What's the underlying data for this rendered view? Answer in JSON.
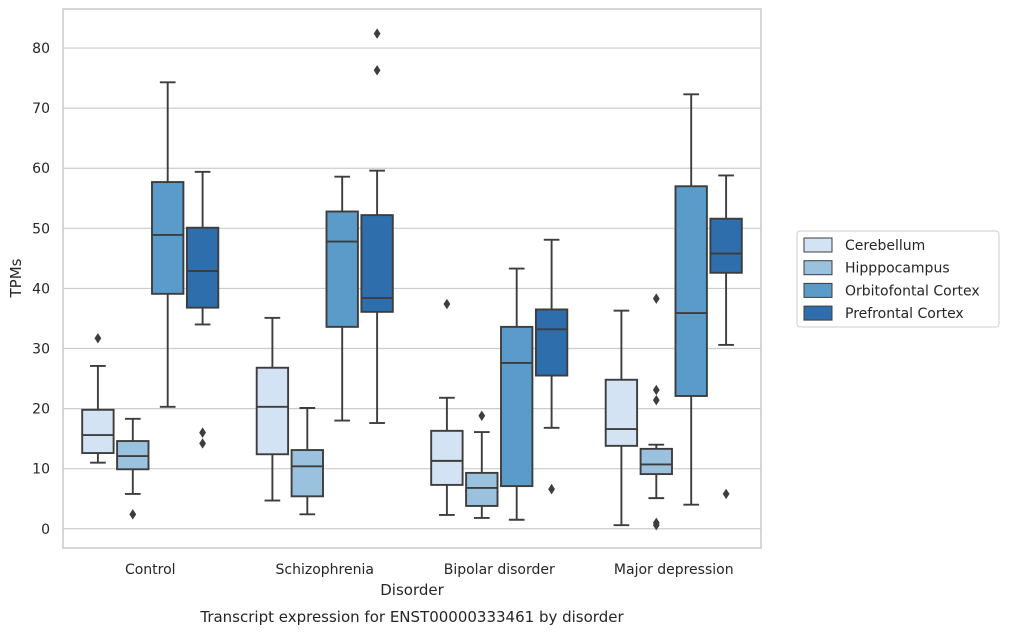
{
  "caption": "Transcript expression for ENST00000333461 by disorder",
  "chart_data": {
    "type": "box",
    "xlabel": "Disorder",
    "ylabel": "TPMs",
    "ylim": [
      -3.2,
      86.5
    ],
    "yticks": [
      0,
      10,
      20,
      30,
      40,
      50,
      60,
      70,
      80
    ],
    "grid": "horizontal",
    "legend_position": "right",
    "categories": [
      "Control",
      "Schizophrenia",
      "Bipolar disorder",
      "Major depression"
    ],
    "series": [
      {
        "name": "Cerebellum",
        "color": "#d4e3f3",
        "boxes": [
          {
            "whisker_low": 11.0,
            "q1": 12.6,
            "median": 15.6,
            "q3": 19.8,
            "whisker_high": 27.1,
            "outliers": [
              31.7
            ]
          },
          {
            "whisker_low": 4.7,
            "q1": 12.4,
            "median": 20.3,
            "q3": 26.8,
            "whisker_high": 35.1,
            "outliers": []
          },
          {
            "whisker_low": 2.3,
            "q1": 7.3,
            "median": 11.3,
            "q3": 16.3,
            "whisker_high": 21.8,
            "outliers": [
              37.4
            ]
          },
          {
            "whisker_low": 0.6,
            "q1": 13.8,
            "median": 16.6,
            "q3": 24.8,
            "whisker_high": 36.3,
            "outliers": []
          }
        ]
      },
      {
        "name": "Hipppocampus",
        "color": "#9ac1dd",
        "boxes": [
          {
            "whisker_low": 5.8,
            "q1": 9.9,
            "median": 12.1,
            "q3": 14.6,
            "whisker_high": 18.3,
            "outliers": [
              2.4
            ]
          },
          {
            "whisker_low": 2.4,
            "q1": 5.4,
            "median": 10.4,
            "q3": 13.1,
            "whisker_high": 20.1,
            "outliers": []
          },
          {
            "whisker_low": 1.8,
            "q1": 3.8,
            "median": 6.8,
            "q3": 9.3,
            "whisker_high": 16.1,
            "outliers": [
              18.8
            ]
          },
          {
            "whisker_low": 5.1,
            "q1": 9.1,
            "median": 10.7,
            "q3": 13.3,
            "whisker_high": 14.0,
            "outliers": [
              23.1,
              21.4,
              38.3,
              1.0,
              0.6
            ]
          }
        ]
      },
      {
        "name": "Orbitofontal Cortex",
        "color": "#5a9bc9",
        "boxes": [
          {
            "whisker_low": 20.3,
            "q1": 39.1,
            "median": 48.9,
            "q3": 57.7,
            "whisker_high": 74.3,
            "outliers": []
          },
          {
            "whisker_low": 18.0,
            "q1": 33.6,
            "median": 47.8,
            "q3": 52.8,
            "whisker_high": 58.6,
            "outliers": []
          },
          {
            "whisker_low": 1.5,
            "q1": 7.1,
            "median": 27.6,
            "q3": 33.6,
            "whisker_high": 43.3,
            "outliers": []
          },
          {
            "whisker_low": 4.0,
            "q1": 22.1,
            "median": 35.9,
            "q3": 57.0,
            "whisker_high": 72.3,
            "outliers": []
          }
        ]
      },
      {
        "name": "Prefrontal Cortex",
        "color": "#2e6ead",
        "boxes": [
          {
            "whisker_low": 34.0,
            "q1": 36.8,
            "median": 42.9,
            "q3": 50.1,
            "whisker_high": 59.4,
            "outliers": [
              16.0,
              14.2
            ]
          },
          {
            "whisker_low": 17.6,
            "q1": 36.1,
            "median": 38.4,
            "q3": 52.2,
            "whisker_high": 59.6,
            "outliers": [
              82.4,
              76.3
            ]
          },
          {
            "whisker_low": 16.8,
            "q1": 25.5,
            "median": 33.2,
            "q3": 36.5,
            "whisker_high": 48.1,
            "outliers": [
              6.6
            ]
          },
          {
            "whisker_low": 30.6,
            "q1": 42.6,
            "median": 45.8,
            "q3": 51.6,
            "whisker_high": 58.8,
            "outliers": [
              5.8
            ]
          }
        ]
      }
    ]
  }
}
